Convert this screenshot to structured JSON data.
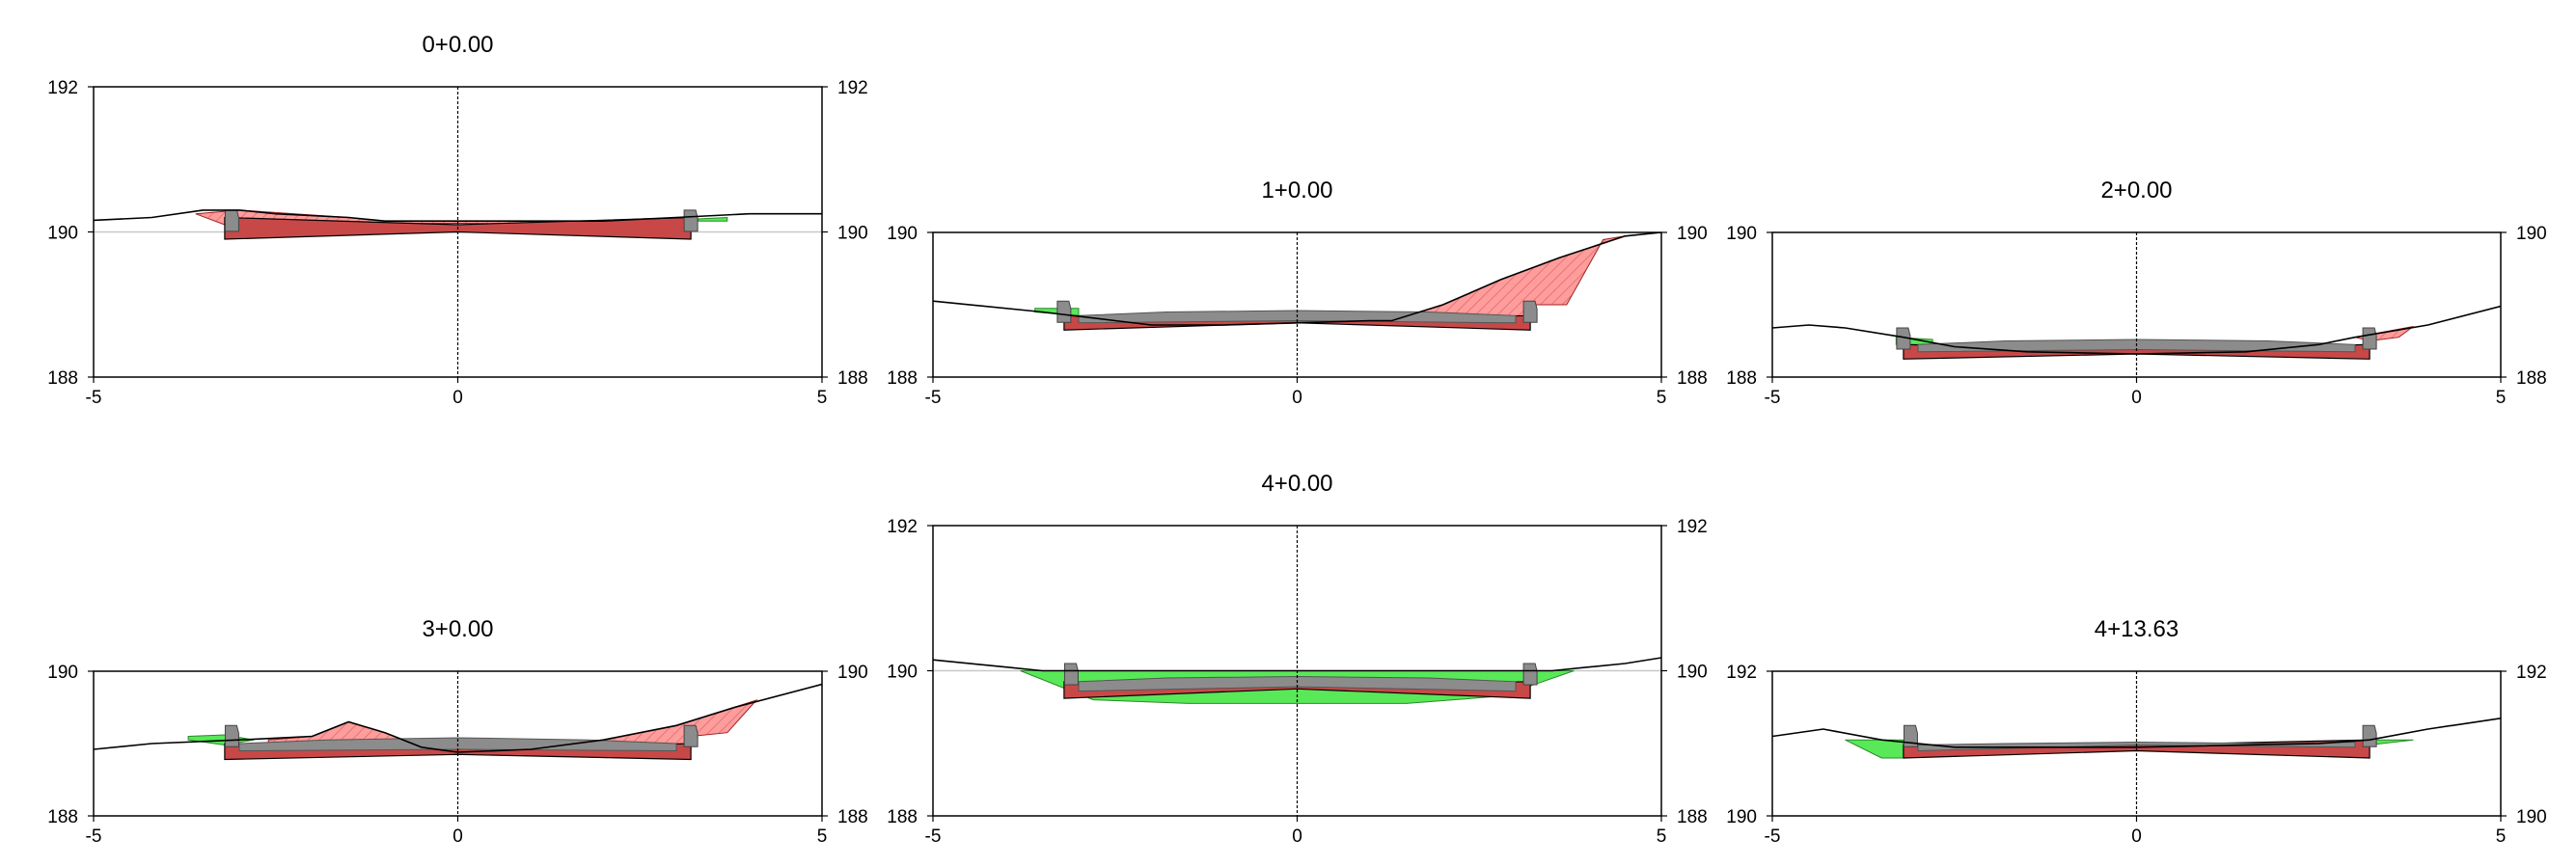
{
  "colors": {
    "cut": "#ff5a5a",
    "fill": "#58e858",
    "pavement": "#8c8c8c",
    "subgrade": "#c84848",
    "ground": "#000000",
    "frame": "#000000"
  },
  "chart_data": [
    {
      "type": "cross-section",
      "title": "0+0.00",
      "xlim": [
        -5,
        5
      ],
      "ylim": [
        188,
        192
      ],
      "x_ticks": [
        "-5",
        "0",
        "5"
      ],
      "y_ticks_left": [
        "192",
        "190",
        "188"
      ],
      "y_ticks_right": [
        "192",
        "190",
        "188"
      ],
      "datum_y": 190,
      "ground": [
        [
          -5.2,
          190.15
        ],
        [
          -4.2,
          190.2
        ],
        [
          -3.5,
          190.3
        ],
        [
          -3.0,
          190.3
        ],
        [
          -2.5,
          190.25
        ],
        [
          -1.5,
          190.2
        ],
        [
          -1.0,
          190.15
        ],
        [
          0,
          190.15
        ],
        [
          1.0,
          190.15
        ],
        [
          2.0,
          190.15
        ],
        [
          3.0,
          190.2
        ],
        [
          4.0,
          190.25
        ],
        [
          5.0,
          190.25
        ]
      ],
      "cut": [
        [
          [
            -3.6,
            190.25
          ],
          [
            -3.0,
            190.3
          ],
          [
            -1.5,
            190.2
          ],
          [
            -1.0,
            190.15
          ],
          [
            0,
            190.15
          ],
          [
            1.0,
            190.15
          ],
          [
            2.0,
            190.15
          ],
          [
            3.1,
            190.18
          ],
          [
            3.2,
            190.1
          ],
          [
            0,
            190.12
          ],
          [
            -3.2,
            190.1
          ]
        ]
      ],
      "fill": [
        [
          [
            3.3,
            190.18
          ],
          [
            3.7,
            190.2
          ],
          [
            3.7,
            190.15
          ],
          [
            3.3,
            190.15
          ]
        ]
      ],
      "subgrade": [
        [
          [
            -3.2,
            190.2
          ],
          [
            0,
            190.1
          ],
          [
            3.2,
            190.2
          ],
          [
            3.2,
            189.9
          ],
          [
            0,
            190.0
          ],
          [
            -3.2,
            189.9
          ]
        ]
      ],
      "pavement": [],
      "curbs": [
        [
          -3.1,
          190.3
        ],
        [
          3.2,
          190.3
        ]
      ]
    },
    {
      "type": "cross-section",
      "title": "1+0.00",
      "xlim": [
        -5,
        5
      ],
      "ylim": [
        188,
        190
      ],
      "x_ticks": [
        "-5",
        "0",
        "5"
      ],
      "y_ticks_left": [
        "190",
        "188"
      ],
      "y_ticks_right": [
        "190",
        "188"
      ],
      "datum_y": null,
      "ground": [
        [
          -5.0,
          189.05
        ],
        [
          -3.5,
          188.9
        ],
        [
          -2.5,
          188.78
        ],
        [
          -2.0,
          188.72
        ],
        [
          -1.0,
          188.72
        ],
        [
          0,
          188.75
        ],
        [
          1.0,
          188.78
        ],
        [
          1.3,
          188.78
        ],
        [
          2.0,
          189.0
        ],
        [
          2.8,
          189.35
        ],
        [
          3.6,
          189.65
        ],
        [
          4.5,
          189.95
        ],
        [
          5.0,
          190.0
        ]
      ],
      "cut": [
        [
          [
            1.3,
            188.78
          ],
          [
            2.0,
            189.0
          ],
          [
            2.8,
            189.35
          ],
          [
            3.6,
            189.65
          ],
          [
            4.5,
            189.95
          ],
          [
            4.2,
            189.9
          ],
          [
            3.7,
            189.0
          ],
          [
            3.2,
            189.0
          ],
          [
            3.2,
            188.75
          ],
          [
            1.5,
            188.72
          ]
        ]
      ],
      "fill": [
        [
          [
            -3.6,
            188.95
          ],
          [
            -3.0,
            188.95
          ],
          [
            -3.0,
            188.85
          ],
          [
            -3.6,
            188.9
          ]
        ]
      ],
      "subgrade": [
        [
          [
            -3.2,
            188.85
          ],
          [
            0,
            188.8
          ],
          [
            3.2,
            188.85
          ],
          [
            3.2,
            188.65
          ],
          [
            0,
            188.75
          ],
          [
            -3.2,
            188.65
          ]
        ]
      ],
      "pavement": [
        [
          [
            -3.0,
            188.85
          ],
          [
            -1.8,
            188.9
          ],
          [
            0,
            188.92
          ],
          [
            1.8,
            188.9
          ],
          [
            3.0,
            188.85
          ],
          [
            3.0,
            188.75
          ],
          [
            0,
            188.78
          ],
          [
            -3.0,
            188.75
          ]
        ]
      ],
      "curbs": [
        [
          -3.2,
          189.05
        ],
        [
          3.2,
          189.05
        ]
      ]
    },
    {
      "type": "cross-section",
      "title": "2+0.00",
      "xlim": [
        -5,
        5
      ],
      "ylim": [
        188,
        190
      ],
      "x_ticks": [
        "-5",
        "0",
        "5"
      ],
      "y_ticks_left": [
        "190",
        "188"
      ],
      "y_ticks_right": [
        "190",
        "188"
      ],
      "datum_y": null,
      "ground": [
        [
          -5.0,
          188.68
        ],
        [
          -4.5,
          188.72
        ],
        [
          -4.0,
          188.68
        ],
        [
          -3.2,
          188.55
        ],
        [
          -2.5,
          188.42
        ],
        [
          -1.5,
          188.35
        ],
        [
          0,
          188.32
        ],
        [
          1.5,
          188.35
        ],
        [
          2.5,
          188.45
        ],
        [
          3.0,
          188.55
        ],
        [
          4.0,
          188.72
        ],
        [
          5.0,
          188.98
        ]
      ],
      "cut": [
        [
          [
            3.0,
            188.55
          ],
          [
            3.8,
            188.7
          ],
          [
            3.6,
            188.55
          ],
          [
            3.2,
            188.5
          ]
        ]
      ],
      "fill": [
        [
          [
            -3.3,
            188.55
          ],
          [
            -2.8,
            188.52
          ],
          [
            -2.8,
            188.45
          ],
          [
            -3.3,
            188.45
          ]
        ]
      ],
      "subgrade": [
        [
          [
            -3.2,
            188.45
          ],
          [
            0,
            188.38
          ],
          [
            3.2,
            188.45
          ],
          [
            3.2,
            188.25
          ],
          [
            0,
            188.32
          ],
          [
            -3.2,
            188.25
          ]
        ]
      ],
      "pavement": [
        [
          [
            -3.0,
            188.45
          ],
          [
            -1.8,
            188.5
          ],
          [
            0,
            188.52
          ],
          [
            1.8,
            188.5
          ],
          [
            3.0,
            188.45
          ],
          [
            3.0,
            188.35
          ],
          [
            0,
            188.38
          ],
          [
            -3.0,
            188.35
          ]
        ]
      ],
      "curbs": [
        [
          -3.2,
          188.68
        ],
        [
          3.2,
          188.68
        ]
      ]
    },
    {
      "type": "cross-section",
      "title": "3+0.00",
      "xlim": [
        -5,
        5
      ],
      "ylim": [
        188,
        190
      ],
      "x_ticks": [
        "-5",
        "0",
        "5"
      ],
      "y_ticks_left": [
        "190",
        "188"
      ],
      "y_ticks_right": [
        "190",
        "188"
      ],
      "datum_y": null,
      "ground": [
        [
          -5.0,
          188.92
        ],
        [
          -4.2,
          189.0
        ],
        [
          -3.0,
          189.05
        ],
        [
          -2.0,
          189.1
        ],
        [
          -1.5,
          189.3
        ],
        [
          -1.0,
          189.15
        ],
        [
          -0.5,
          188.95
        ],
        [
          0,
          188.88
        ],
        [
          1.0,
          188.92
        ],
        [
          2.0,
          189.05
        ],
        [
          3.0,
          189.25
        ],
        [
          3.8,
          189.5
        ],
        [
          5.0,
          189.82
        ]
      ],
      "cut": [
        [
          [
            -2.6,
            189.05
          ],
          [
            -2.0,
            189.1
          ],
          [
            -1.5,
            189.3
          ],
          [
            -1.0,
            189.15
          ],
          [
            -0.5,
            188.95
          ],
          [
            -1.5,
            188.95
          ],
          [
            -2.6,
            188.95
          ]
        ],
        [
          [
            1.0,
            188.92
          ],
          [
            2.0,
            189.05
          ],
          [
            3.0,
            189.25
          ],
          [
            4.1,
            189.6
          ],
          [
            3.7,
            189.15
          ],
          [
            3.2,
            189.1
          ],
          [
            3.2,
            188.92
          ]
        ]
      ],
      "fill": [
        [
          [
            -3.7,
            189.1
          ],
          [
            -3.2,
            189.12
          ],
          [
            -2.8,
            189.05
          ],
          [
            -3.2,
            188.98
          ],
          [
            -3.7,
            189.05
          ]
        ]
      ],
      "subgrade": [
        [
          [
            -3.2,
            189.0
          ],
          [
            0,
            188.92
          ],
          [
            3.2,
            189.0
          ],
          [
            3.2,
            188.78
          ],
          [
            0,
            188.85
          ],
          [
            -3.2,
            188.78
          ]
        ]
      ],
      "pavement": [
        [
          [
            -3.0,
            189.0
          ],
          [
            -1.8,
            189.05
          ],
          [
            0,
            189.08
          ],
          [
            1.8,
            189.05
          ],
          [
            3.0,
            189.0
          ],
          [
            3.0,
            188.9
          ],
          [
            0,
            188.92
          ],
          [
            -3.0,
            188.9
          ]
        ]
      ],
      "curbs": [
        [
          -3.1,
          189.25
        ],
        [
          3.2,
          189.25
        ]
      ]
    },
    {
      "type": "cross-section",
      "title": "4+0.00",
      "xlim": [
        -5,
        5
      ],
      "ylim": [
        188,
        192
      ],
      "x_ticks": [
        "-5",
        "0",
        "5"
      ],
      "y_ticks_left": [
        "192",
        "190",
        "188"
      ],
      "y_ticks_right": [
        "192",
        "190",
        "188"
      ],
      "datum_y": 190,
      "ground": [
        [
          -5.0,
          190.15
        ],
        [
          -4.0,
          190.05
        ],
        [
          -3.5,
          190.0
        ],
        [
          3.5,
          190.0
        ],
        [
          4.0,
          190.05
        ],
        [
          4.5,
          190.1
        ],
        [
          5.0,
          190.18
        ]
      ],
      "cut": [],
      "fill": [
        [
          [
            -3.8,
            190.0
          ],
          [
            -2.8,
            189.6
          ],
          [
            -1.5,
            189.55
          ],
          [
            0,
            189.55
          ],
          [
            1.5,
            189.55
          ],
          [
            2.8,
            189.65
          ],
          [
            3.8,
            190.0
          ]
        ]
      ],
      "subgrade": [
        [
          [
            -3.2,
            189.85
          ],
          [
            0,
            189.8
          ],
          [
            3.2,
            189.85
          ],
          [
            3.2,
            189.62
          ],
          [
            0,
            189.75
          ],
          [
            -3.2,
            189.62
          ]
        ]
      ],
      "pavement": [
        [
          [
            -3.0,
            189.85
          ],
          [
            -1.8,
            189.9
          ],
          [
            0,
            189.92
          ],
          [
            1.8,
            189.9
          ],
          [
            3.0,
            189.85
          ],
          [
            3.0,
            189.72
          ],
          [
            0,
            189.78
          ],
          [
            -3.0,
            189.72
          ]
        ]
      ],
      "curbs": [
        [
          -3.1,
          190.1
        ],
        [
          3.2,
          190.1
        ]
      ]
    },
    {
      "type": "cross-section",
      "title": "4+13.63",
      "xlim": [
        -5,
        5
      ],
      "ylim": [
        190,
        192
      ],
      "x_ticks": [
        "-5",
        "0",
        "5"
      ],
      "y_ticks_left": [
        "192",
        "190"
      ],
      "y_ticks_right": [
        "192",
        "190"
      ],
      "datum_y": null,
      "ground": [
        [
          -5.0,
          191.1
        ],
        [
          -4.3,
          191.2
        ],
        [
          -3.5,
          191.05
        ],
        [
          -2.5,
          190.95
        ],
        [
          0,
          190.95
        ],
        [
          2.5,
          191.0
        ],
        [
          3.2,
          191.05
        ],
        [
          4.0,
          191.2
        ],
        [
          5.0,
          191.35
        ]
      ],
      "cut": [],
      "fill": [
        [
          [
            -4.0,
            191.05
          ],
          [
            -3.2,
            191.05
          ],
          [
            -3.2,
            190.8
          ],
          [
            -3.5,
            190.8
          ]
        ],
        [
          [
            3.2,
            191.05
          ],
          [
            3.8,
            191.05
          ],
          [
            3.2,
            190.98
          ]
        ]
      ],
      "subgrade": [
        [
          [
            -3.2,
            190.98
          ],
          [
            0,
            190.98
          ],
          [
            3.2,
            191.05
          ],
          [
            3.2,
            190.8
          ],
          [
            0,
            190.9
          ],
          [
            -3.2,
            190.8
          ]
        ]
      ],
      "pavement": [
        [
          [
            -3.0,
            190.98
          ],
          [
            -1.8,
            191.0
          ],
          [
            0,
            191.02
          ],
          [
            1.8,
            191.0
          ],
          [
            3.0,
            191.02
          ],
          [
            3.0,
            190.95
          ],
          [
            0,
            190.98
          ],
          [
            -3.0,
            190.9
          ]
        ]
      ],
      "curbs": [
        [
          -3.1,
          191.25
        ],
        [
          3.2,
          191.25
        ]
      ]
    }
  ]
}
